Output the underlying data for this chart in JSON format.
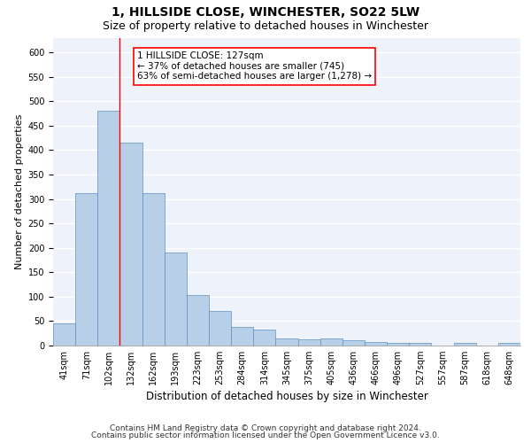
{
  "title": "1, HILLSIDE CLOSE, WINCHESTER, SO22 5LW",
  "subtitle": "Size of property relative to detached houses in Winchester",
  "xlabel": "Distribution of detached houses by size in Winchester",
  "ylabel": "Number of detached properties",
  "categories": [
    "41sqm",
    "71sqm",
    "102sqm",
    "132sqm",
    "162sqm",
    "193sqm",
    "223sqm",
    "253sqm",
    "284sqm",
    "314sqm",
    "345sqm",
    "375sqm",
    "405sqm",
    "436sqm",
    "466sqm",
    "496sqm",
    "527sqm",
    "557sqm",
    "587sqm",
    "618sqm",
    "648sqm"
  ],
  "values": [
    46,
    311,
    480,
    415,
    312,
    190,
    103,
    70,
    38,
    32,
    15,
    13,
    15,
    11,
    8,
    5,
    5,
    0,
    5,
    0,
    5
  ],
  "bar_color": "#b8cfe8",
  "bar_edge_color": "#6090c0",
  "vline_color": "red",
  "annotation_line1": "1 HILLSIDE CLOSE: 127sqm",
  "annotation_line2": "← 37% of detached houses are smaller (745)",
  "annotation_line3": "63% of semi-detached houses are larger (1,278) →",
  "annotation_box_facecolor": "white",
  "annotation_box_edgecolor": "red",
  "ylim": [
    0,
    630
  ],
  "yticks": [
    0,
    50,
    100,
    150,
    200,
    250,
    300,
    350,
    400,
    450,
    500,
    550,
    600
  ],
  "background_color": "#eef2fa",
  "grid_color": "white",
  "footnote1": "Contains HM Land Registry data © Crown copyright and database right 2024.",
  "footnote2": "Contains public sector information licensed under the Open Government Licence v3.0.",
  "title_fontsize": 10,
  "subtitle_fontsize": 9,
  "xlabel_fontsize": 8.5,
  "ylabel_fontsize": 8,
  "tick_fontsize": 7,
  "annotation_fontsize": 7.5,
  "footnote_fontsize": 6.5
}
